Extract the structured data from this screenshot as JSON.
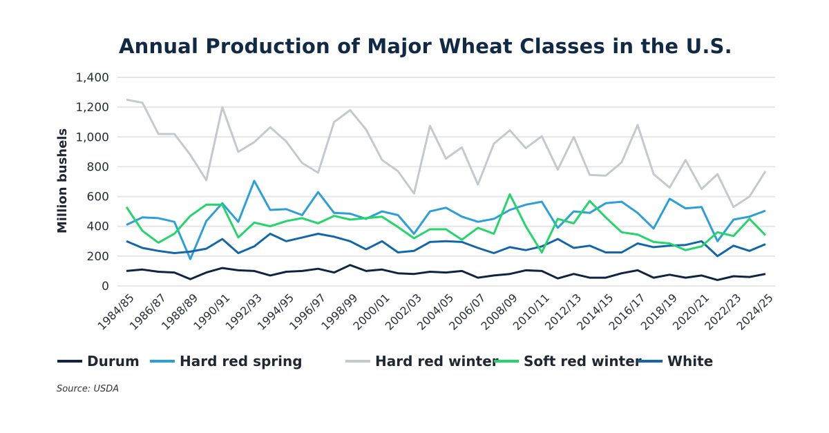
{
  "title": "Annual Production of Major Wheat Classes in the U.S.",
  "source": "Source: USDA",
  "colors": {
    "Durum": "#0e2442",
    "Hard red spring": "#2b9fd9",
    "Hard red winter": "#c5c8cc",
    "Soft red winter": "#22d669",
    "White": "#1166ab",
    "grid": "#e6e6e6",
    "title": "#102a46"
  },
  "chart_data": {
    "type": "line",
    "title": "Annual Production of Major Wheat Classes in the U.S.",
    "ylabel": "Million bushels",
    "xlabel": "",
    "ylim": [
      0,
      1400
    ],
    "yticks": [
      "0",
      "200",
      "400",
      "600",
      "800",
      "1,000",
      "1,200",
      "1,400"
    ],
    "grid": true,
    "legend_placement": "bottom",
    "x": [
      "1984/85",
      "1985/86",
      "1986/87",
      "1987/88",
      "1988/89",
      "1989/90",
      "1990/91",
      "1991/92",
      "1992/93",
      "1993/94",
      "1994/95",
      "1995/96",
      "1996/97",
      "1997/98",
      "1998/99",
      "1999/00",
      "2000/01",
      "2001/02",
      "2002/03",
      "2003/04",
      "2004/05",
      "2005/06",
      "2006/07",
      "2007/08",
      "2008/09",
      "2009/10",
      "2010/11",
      "2011/12",
      "2012/13",
      "2013/14",
      "2014/15",
      "2015/16",
      "2016/17",
      "2017/18",
      "2018/19",
      "2019/20",
      "2020/21",
      "2021/22",
      "2022/23",
      "2023/24",
      "2024/25"
    ],
    "xticks_shown": [
      "1984/85",
      "1986/87",
      "1988/89",
      "1990/91",
      "1992/93",
      "1994/95",
      "1996/97",
      "1998/99",
      "2000/01",
      "2002/03",
      "2004/05",
      "2006/07",
      "2008/09",
      "2010/11",
      "2012/13",
      "2014/15",
      "2016/17",
      "2018/19",
      "2020/21",
      "2022/23",
      "2024/25"
    ],
    "series": [
      {
        "name": "Durum",
        "values": [
          100,
          110,
          95,
          90,
          45,
          90,
          120,
          105,
          100,
          70,
          95,
          100,
          115,
          90,
          140,
          100,
          110,
          85,
          80,
          95,
          90,
          100,
          55,
          70,
          80,
          105,
          100,
          50,
          80,
          55,
          55,
          85,
          105,
          55,
          75,
          55,
          70,
          40,
          65,
          60,
          80
        ]
      },
      {
        "name": "Hard red spring",
        "values": [
          410,
          460,
          455,
          430,
          180,
          435,
          555,
          430,
          705,
          510,
          515,
          475,
          630,
          490,
          485,
          450,
          500,
          475,
          350,
          500,
          525,
          465,
          430,
          450,
          510,
          545,
          565,
          390,
          500,
          490,
          555,
          565,
          490,
          385,
          585,
          520,
          530,
          300,
          445,
          465,
          505
        ]
      },
      {
        "name": "Hard red winter",
        "values": [
          1250,
          1230,
          1020,
          1020,
          880,
          710,
          1200,
          900,
          965,
          1065,
          970,
          825,
          760,
          1100,
          1180,
          1050,
          845,
          770,
          620,
          1075,
          855,
          930,
          680,
          955,
          1045,
          925,
          1005,
          780,
          1000,
          745,
          740,
          830,
          1080,
          750,
          660,
          845,
          650,
          750,
          530,
          600,
          770
        ]
      },
      {
        "name": "Soft red winter",
        "values": [
          530,
          370,
          290,
          350,
          470,
          545,
          545,
          325,
          425,
          400,
          435,
          455,
          420,
          470,
          445,
          455,
          465,
          395,
          320,
          380,
          380,
          310,
          390,
          350,
          615,
          400,
          225,
          450,
          420,
          570,
          460,
          360,
          345,
          295,
          285,
          240,
          265,
          360,
          335,
          450,
          340
        ]
      },
      {
        "name": "White",
        "values": [
          300,
          255,
          235,
          220,
          230,
          250,
          315,
          220,
          265,
          350,
          300,
          325,
          350,
          330,
          300,
          245,
          300,
          225,
          235,
          295,
          300,
          295,
          255,
          220,
          260,
          240,
          265,
          315,
          255,
          270,
          225,
          225,
          285,
          260,
          270,
          275,
          300,
          200,
          270,
          235,
          280
        ]
      }
    ]
  }
}
